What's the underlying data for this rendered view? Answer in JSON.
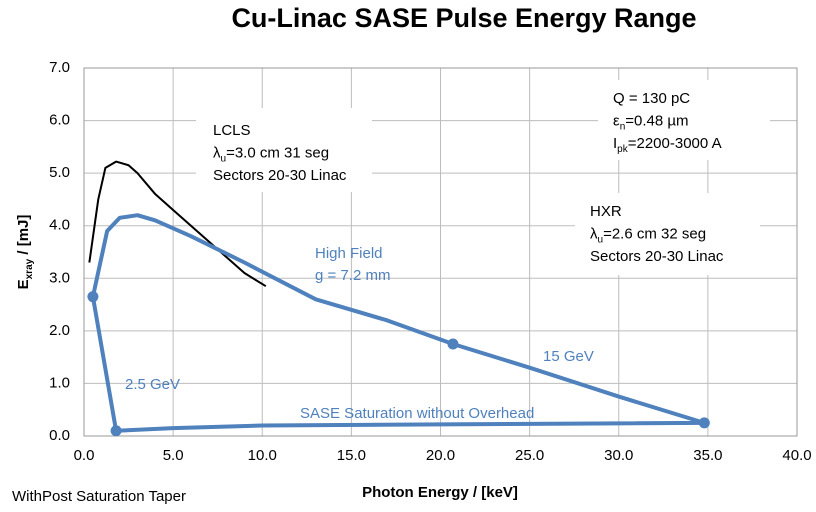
{
  "chart_data": {
    "type": "line",
    "title": "Cu-Linac SASE Pulse Energy Range",
    "xlabel": "Photon Energy / [keV]",
    "ylabel": [
      "E",
      {
        "sub": "xray"
      },
      " / [mJ]"
    ],
    "footer": "WithPost Saturation Taper",
    "xlim": [
      0,
      40
    ],
    "ylim": [
      0,
      7
    ],
    "grid": true,
    "xticks": [
      {
        "value": 0,
        "label": "0.0"
      },
      {
        "value": 5,
        "label": "5.0"
      },
      {
        "value": 10,
        "label": "10.0"
      },
      {
        "value": 15,
        "label": "15.0"
      },
      {
        "value": 20,
        "label": "20.0"
      },
      {
        "value": 25,
        "label": "25.0"
      },
      {
        "value": 30,
        "label": "30.0"
      },
      {
        "value": 35,
        "label": "35.0"
      },
      {
        "value": 40,
        "label": "40.0"
      }
    ],
    "yticks": [
      {
        "value": 0,
        "label": "0.0"
      },
      {
        "value": 1,
        "label": "1.0"
      },
      {
        "value": 2,
        "label": "2.0"
      },
      {
        "value": 3,
        "label": "3.0"
      },
      {
        "value": 4,
        "label": "4.0"
      },
      {
        "value": 5,
        "label": "5.0"
      },
      {
        "value": 6,
        "label": "6.0"
      },
      {
        "value": 7,
        "label": "7.0"
      }
    ],
    "series": [
      {
        "style": "line",
        "color": "#000000",
        "x": [
          0.3,
          0.8,
          1.2,
          1.8,
          2.5,
          3,
          4,
          5,
          7,
          9,
          10.2
        ],
        "values": [
          3.3,
          4.5,
          5.1,
          5.22,
          5.15,
          5.0,
          4.6,
          4.3,
          3.7,
          3.1,
          2.85
        ]
      },
      {
        "style": "line",
        "color": "#4f81bd",
        "x": [
          0.5,
          1.3,
          2,
          3,
          4,
          6,
          9,
          13,
          17,
          20.7,
          25,
          30,
          34.8,
          30,
          20,
          10,
          5,
          1.8,
          0.5
        ],
        "values": [
          2.65,
          3.9,
          4.15,
          4.2,
          4.1,
          3.8,
          3.3,
          2.6,
          2.2,
          1.75,
          1.3,
          0.75,
          0.25,
          0.24,
          0.22,
          0.2,
          0.15,
          0.1,
          2.65
        ]
      },
      {
        "style": "marker",
        "color": "#4f81bd",
        "x": [
          0.5,
          1.8,
          20.7,
          34.8
        ],
        "values": [
          2.65,
          0.1,
          1.75,
          0.25
        ]
      }
    ],
    "annotations": [
      {
        "lines": [
          [
            "LCLS"
          ],
          [
            "λ",
            {
              "sub": "u"
            },
            "=3.0 cm 31 seg"
          ],
          [
            "Sectors 20-30 Linac"
          ]
        ]
      },
      {
        "lines": [
          [
            "Q = 130 pC"
          ],
          [
            "ε",
            {
              "sub": "n"
            },
            "=0.48 µm"
          ],
          [
            "I",
            {
              "sub": "pk"
            },
            "=2200-3000 A"
          ]
        ]
      },
      {
        "lines": [
          [
            "HXR"
          ],
          [
            "λ",
            {
              "sub": "u"
            },
            "=2.6 cm 32 seg"
          ],
          [
            "Sectors 20-30 Linac"
          ]
        ]
      }
    ],
    "labels": [
      "High Field",
      "g = 7.2 mm",
      "15 GeV",
      "2.5 GeV",
      "SASE Saturation without Overhead"
    ],
    "label_color": "#4f81bd"
  }
}
